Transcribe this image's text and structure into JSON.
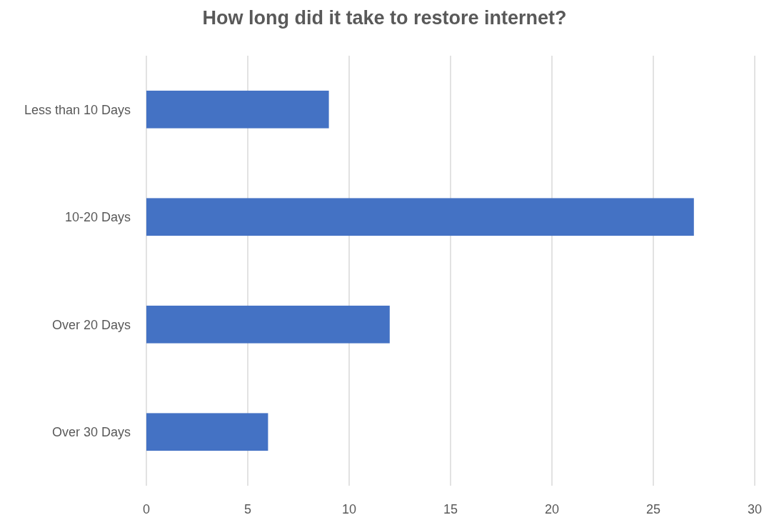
{
  "chart_data": {
    "type": "bar",
    "title": "How long did it take to restore internet?",
    "orientation": "horizontal",
    "categories": [
      "Less than 10 Days",
      "10-20 Days",
      "Over 20 Days",
      "Over 30 Days"
    ],
    "values": [
      9,
      27,
      12,
      6
    ],
    "color": "#4472c4",
    "xlim": [
      0,
      30
    ],
    "xticks": [
      0,
      5,
      10,
      15,
      20,
      25,
      30
    ],
    "grid": "x"
  }
}
